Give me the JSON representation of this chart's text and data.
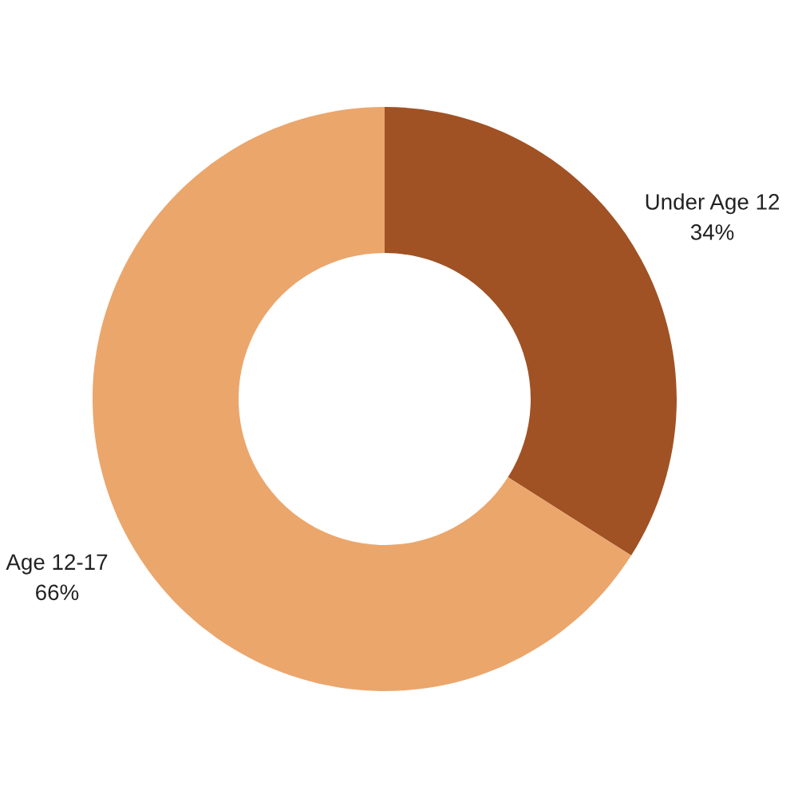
{
  "chart_data": {
    "type": "donut",
    "categories": [
      "Under Age 12",
      "Age 12-17"
    ],
    "values": [
      34,
      66
    ],
    "value_labels": [
      "34%",
      "66%"
    ],
    "colors": [
      "#a05224",
      "#eba66c"
    ],
    "legend": false
  }
}
